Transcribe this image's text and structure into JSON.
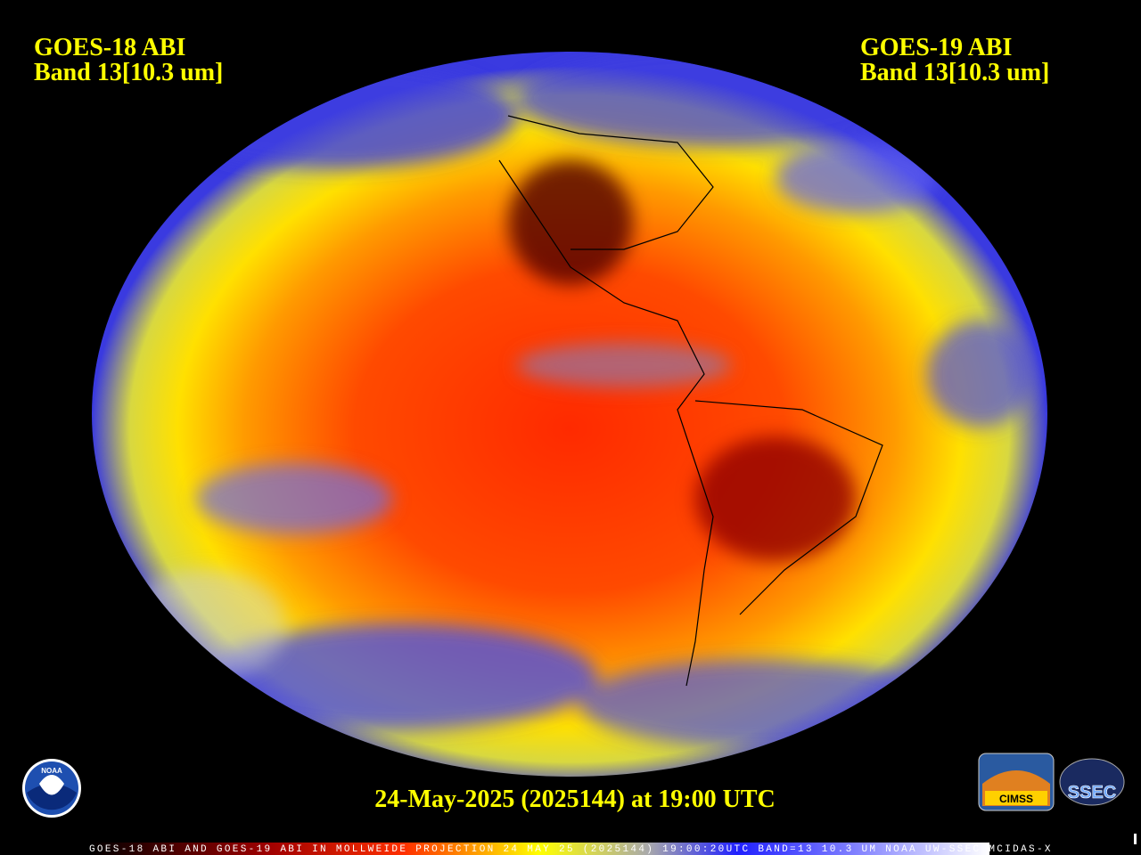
{
  "header": {
    "left": {
      "line1": "GOES-18 ABI",
      "line2": "Band 13[10.3 um]"
    },
    "right": {
      "line1": "GOES-19 ABI",
      "line2": "Band 13[10.3 um]"
    }
  },
  "timestamp": "24-May-2025 (2025144) at 19:00 UTC",
  "footer": "GOES-18 ABI AND GOES-19 ABI IN MOLLWEIDE PROJECTION 24 MAY 25 (2025144) 19:00:20UTC BAND=13 10.3 UM NOAA UW-SSEC MCIDAS-X",
  "logos": {
    "noaa": "NOAA",
    "cimss": "CIMSS",
    "ssec": "SSEC"
  }
}
